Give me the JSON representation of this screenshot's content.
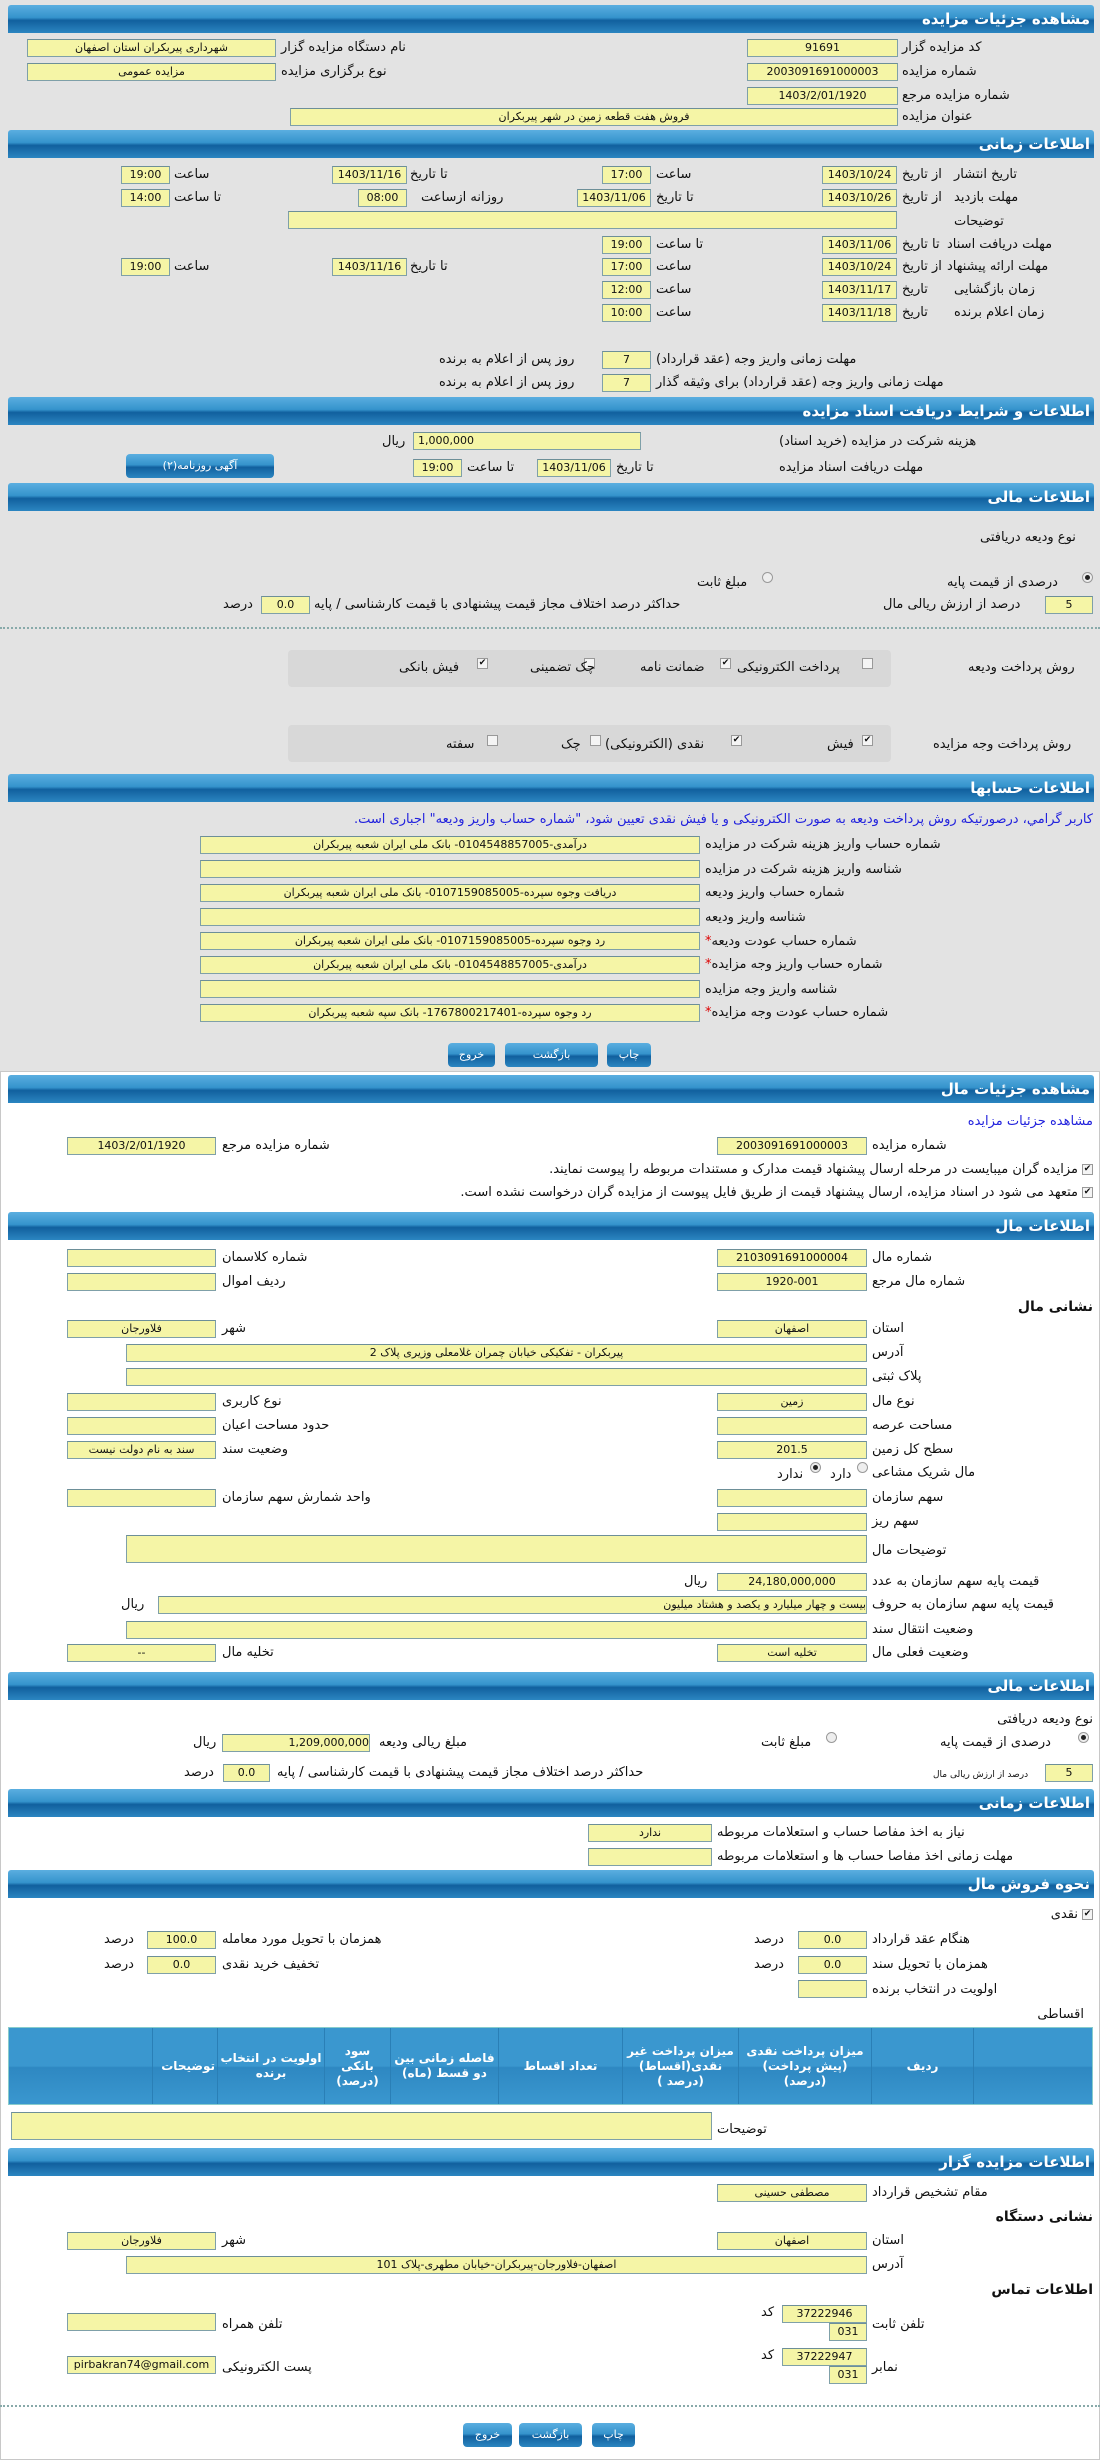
{
  "colors": {
    "header": "#2e88c2",
    "input": "#f5f5a6",
    "page_top": "#e3e3e3",
    "note": "#2222dd",
    "required": "#dd0000"
  },
  "auction": {
    "title": "مشاهده جزئیات مزایده",
    "auctioneer_code_label": "کد مزایده گزار",
    "auctioneer_code": "91691",
    "org_name_label": "نام دستگاه مزایده گزار",
    "org_name": "شهرداری پیربکران استان اصفهان",
    "auction_no_label": "شماره مزایده",
    "auction_no": "2003091691000003",
    "holding_type_label": "نوع برگزاری مزایده",
    "holding_type": "مزایده عمومی",
    "ref_no_label": "شماره مزایده مرجع",
    "ref_no": "1403/2/01/1920",
    "subject_label": "عنوان مزایده",
    "subject": "فروش هفت قطعه زمین در شهر پیربکران"
  },
  "time": {
    "title": "اطلاعات زمانی",
    "from_date": "از تاریخ",
    "to_date": "تا تاریخ",
    "date": "تاریخ",
    "hour": "ساعت",
    "until_hour": "تا ساعت",
    "daily_from": "روزانه ازساعت",
    "publish": {
      "label": "تاریخ انتشار",
      "from": "1403/10/24",
      "from_time": "17:00",
      "to": "1403/11/16",
      "to_time": "19:00"
    },
    "visit": {
      "label": "مهلت بازدید",
      "from": "1403/10/26",
      "to": "1403/11/06",
      "daily_from": "08:00",
      "daily_to": "14:00"
    },
    "notes_label": "توضیحات",
    "docs": {
      "label": "مهلت دریافت اسناد",
      "to": "1403/11/06",
      "to_time": "19:00"
    },
    "bids": {
      "label": "مهلت ارائه پیشنهاد",
      "from": "1403/10/24",
      "from_time": "17:00",
      "to": "1403/11/16",
      "to_time": "19:00"
    },
    "opening": {
      "label": "زمان بازگشایی",
      "date": "1403/11/17",
      "time": "12:00"
    },
    "winner": {
      "label": "زمان اعلام برنده",
      "date": "1403/11/18",
      "time": "10:00"
    },
    "pay_deadline": {
      "label": "مهلت زمانی واریز وجه (عقد قرارداد)",
      "days": "7",
      "suffix": "روز پس از اعلام به برنده"
    },
    "pay_deadline_collateral": {
      "label": "مهلت زمانی واریز وجه (عقد قرارداد) برای وثیقه گذار",
      "days": "7",
      "suffix": "روز پس از اعلام به برنده"
    }
  },
  "docs": {
    "title": "اطلاعات و شرایط دریافت اسناد مزایده",
    "fee_label": "هزینه شرکت در مزایده (خرید اسناد)",
    "fee": "1,000,000",
    "currency": "ریال",
    "deadline_label": "مهلت دریافت اسناد مزایده",
    "to_date_label": "تا تاریخ",
    "to_date": "1403/11/06",
    "to_time_label": "تا ساعت",
    "to_time": "19:00",
    "ad_button": "آگهی روزنامه(۲)"
  },
  "finance": {
    "title": "اطلاعات مالی",
    "deposit_type_label": "نوع ودیعه دریافتی",
    "opt_percent": "درصدی از قیمت پایه",
    "opt_fixed": "مبلغ ثابت",
    "selected": "percent",
    "percent": "5",
    "percent_label": "درصد از ارزش ریالی مال",
    "max_diff_label": "حداکثر درصد اختلاف مجاز قیمت پیشنهادی با قیمت کارشناسی / پایه",
    "max_diff": "0.0",
    "unit": "درصد",
    "deposit_methods_label": "روش پرداخت ودیعه",
    "deposit_methods": [
      {
        "label": "پرداخت الکترونیکی",
        "checked": false
      },
      {
        "label": "ضمانت نامه",
        "checked": true
      },
      {
        "label": "چک تضمینی",
        "checked": false
      },
      {
        "label": "فیش بانکی",
        "checked": true
      }
    ],
    "payment_methods_label": "روش پرداخت وجه مزایده",
    "payment_methods": [
      {
        "label": "فیش",
        "checked": true
      },
      {
        "label": "نقدی (الکترونیکی)",
        "checked": true
      },
      {
        "label": "چک",
        "checked": false
      },
      {
        "label": "سفته",
        "checked": false
      }
    ]
  },
  "accounts": {
    "title": "اطلاعات حسابها",
    "note": "کاربر گرامي، درصورتیکه روش پرداخت ودیعه به صورت الکترونیکی و یا فیش نقدی تعیین شود، \"شماره حساب واریز ودیعه\" اجباری است.",
    "required_mark": "*",
    "rows": [
      {
        "label": "شماره حساب واریز هزینه شرکت در مزایده",
        "value": "درآمدی-0104548857005- بانک ملی ایران شعبه پیربکران"
      },
      {
        "label": "شناسه واریز هزینه شرکت در مزایده",
        "value": ""
      },
      {
        "label": "شماره حساب واریز ودیعه",
        "value": "دریافت وجوه سپرده-0107159085005- بانک ملی ایران شعبه پیربکران"
      },
      {
        "label": "شناسه واریز ودیعه",
        "value": ""
      },
      {
        "label": "شماره حساب عودت ودیعه",
        "value": "رد وجوه سپرده-0107159085005- بانک ملی ایران شعبه پیربکران"
      },
      {
        "label": "شماره حساب واریز وجه مزایده",
        "value": "درآمدی-0104548857005- بانک ملی ایران شعبه پیربکران"
      },
      {
        "label": "شناسه واریز وجه مزایده",
        "value": ""
      },
      {
        "label": "شماره حساب عودت وجه مزایده",
        "value": "رد وجوه سپرده-1767800217401- بانک سپه شعبه پیربکران"
      }
    ]
  },
  "buttons": {
    "print": "چاپ",
    "back": "بازگشت",
    "exit": "خروج"
  },
  "item": {
    "title": "مشاهده جزئیات مال",
    "link": "مشاهده جزئیات مزایده",
    "auction_no_label": "شماره مزایده",
    "auction_no": "2003091691000003",
    "ref_no_label": "شماره مزایده مرجع",
    "ref_no": "1403/2/01/1920",
    "check1": "مزایده گران میبایست در مرحله ارسال پیشنهاد قیمت مدارک و مستندات مربوطه را پیوست نمایند.",
    "check2": "متعهد می شود در اسناد مزایده، ارسال پیشنهاد قیمت از طریق فایل پیوست از مزایده گران درخواست نشده است."
  },
  "item_info": {
    "title": "اطلاعات مال",
    "item_no_label": "شماره مال",
    "item_no": "2103091691000004",
    "classman_label": "شماره کلاسمان",
    "ref_label": "شماره مال مرجع",
    "ref": "1920-001",
    "asset_row_label": "ردیف اموال",
    "address_heading": "نشانی مال",
    "province_label": "استان",
    "province": "اصفهان",
    "city_label": "شهر",
    "city": "فلاورجان",
    "address_label": "آدرس",
    "address": "پیربکران - تفکیکی خیابان چمران غلامعلی وزیری پلاک 2",
    "plate_label": "پلاک ثبتی",
    "type_label": "نوع مال",
    "type": "زمین",
    "usage_label": "نوع کاربری",
    "land_area_label": "مساحت عرصه",
    "building_area_label": "حدود مساحت اعیان",
    "total_area_label": "سطح کل زمین",
    "total_area": "201.5",
    "deed_status_label": "وضعیت سند",
    "deed_status": "سند به نام دولت نیست",
    "shared_label": "مال شریک مشاعی",
    "shared_yes": "دارد",
    "shared_no": "ندارد",
    "shared": "no",
    "org_share_label": "سهم سازمان",
    "share_unit_label": "واحد شمارش سهم سازمان",
    "small_share_label": "سهم ریز",
    "desc_label": "توضیحات مال",
    "base_price_label": "قیمت پایه سهم سازمان به عدد",
    "base_price": "24,180,000,000",
    "currency": "ریال",
    "base_price_words_label": "قیمت پایه سهم سازمان به حروف",
    "base_price_words": "بیست و چهار میلیارد و یکصد و هشتاد میلیون",
    "transfer_label": "وضعیت انتقال سند",
    "current_status_label": "وضعیت فعلی مال",
    "current_status": "تخلیه است",
    "eviction_label": "تخلیه مال",
    "eviction": "--"
  },
  "item_finance": {
    "title": "اطلاعات مالی",
    "deposit_type_label": "نوع ودیعه دریافتی",
    "opt_percent": "درصدی از قیمت پایه",
    "opt_fixed": "مبلغ ثابت",
    "selected": "percent",
    "deposit_amount_label": "مبلغ ریالی ودیعه",
    "deposit_amount": "1,209,000,000",
    "currency": "ریال",
    "percent": "5",
    "percent_label": "درصد از ارزش ریالی مال",
    "max_diff_label": "حداکثر درصد اختلاف مجاز قیمت پیشنهادی با قیمت کارشناسی / پایه",
    "max_diff": "0.0",
    "unit": "درصد"
  },
  "item_time": {
    "title": "اطلاعات زمانی",
    "clearance_label": "نیاز به اخذ مفاصا حساب و استعلامات مربوطه",
    "clearance": "ندارد",
    "clearance_deadline_label": "مهلت زمانی اخذ مفاصا حساب ها و استعلامات مربوطه"
  },
  "sale": {
    "title": "نحوه فروش مال",
    "cash_label": "نقدی",
    "cash_checked": true,
    "contract_label": "هنگام عقد قرارداد",
    "contract": "0.0",
    "delivery_label": "همزمان با تحویل مورد معامله",
    "delivery": "100.0",
    "deed_label": "همزمان با تحویل سند",
    "deed": "0.0",
    "discount_label": "تخفیف خرید نقدی",
    "discount": "0.0",
    "priority_label": "اولویت در انتخاب برنده",
    "unit": "درصد",
    "installment_label": "اقساطی",
    "table_headers": [
      "ردیف",
      "میزان پرداخت نقدی (پیش پرداخت) (درصد)",
      "میزان پرداخت غیر نقدی(اقساط) (درصد )",
      "تعداد اقساط",
      "فاصله زمانی بین دو قسط (ماه)",
      "سود بانکی (درصد)",
      "اولویت در انتخاب برنده",
      "توضیحات"
    ],
    "notes_label": "توضیحات"
  },
  "auctioneer": {
    "title": "اطلاعات مزایده گزار",
    "authority_label": "مقام تشخیص قرارداد",
    "authority": "مصطفی حسینی",
    "address_heading": "نشانی دستگاه",
    "province_label": "استان",
    "province": "اصفهان",
    "city_label": "شهر",
    "city": "فلاورجان",
    "address_label": "آدرس",
    "address": "اصفهان-فلاورجان-پیربکران-خیابان مطهری-پلاک 101",
    "contact_heading": "اطلاعات تماس",
    "phone_label": "تلفن ثابت",
    "phone": "37222946",
    "code_label": "کد",
    "phone_code": "031",
    "mobile_label": "تلفن همراه",
    "fax_label": "نمابر",
    "fax": "37222947",
    "fax_code": "031",
    "email_label": "پست الکترونیکی",
    "email": "pirbakran74@gmail.com"
  }
}
